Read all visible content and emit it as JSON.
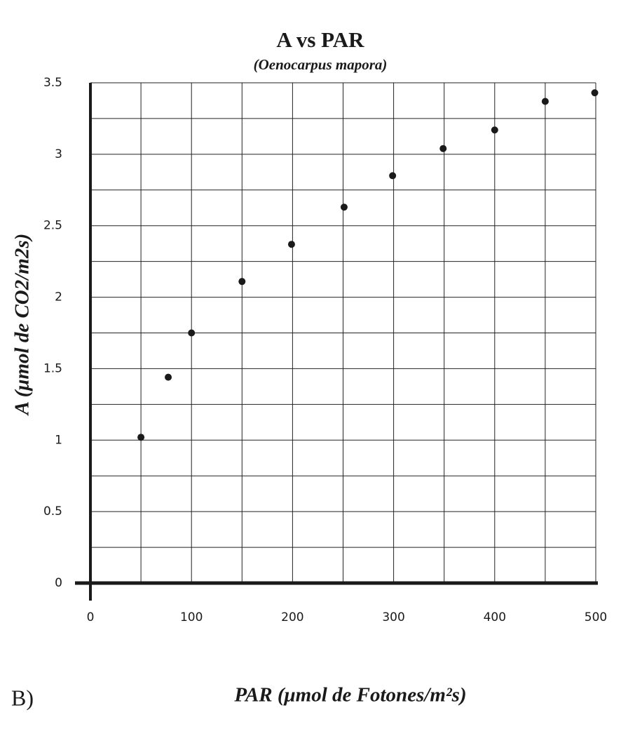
{
  "chart_data": {
    "type": "scatter",
    "title": "A vs PAR",
    "subtitle": "(Oenocarpus mapora)",
    "x_label": "PAR (μmol de Fotones/m²s)",
    "y_label": "A (μmol de CO2/m2s)",
    "panel_label": "B)",
    "x": [
      50,
      77,
      100,
      150,
      199,
      251,
      299,
      349,
      400,
      450,
      499
    ],
    "values": [
      1.02,
      1.44,
      1.75,
      2.11,
      2.37,
      2.63,
      2.85,
      3.04,
      3.17,
      3.37,
      3.43
    ],
    "color": "#1a1a1a",
    "xlim": [
      0,
      500
    ],
    "ylim": [
      0,
      3.5
    ],
    "xticks": [
      0,
      100,
      200,
      300,
      400,
      500
    ],
    "yticks": [
      0,
      0.5,
      1,
      1.5,
      2,
      2.5,
      3,
      3.5
    ],
    "xgrid": [
      50,
      100,
      150,
      200,
      250,
      300,
      350,
      400,
      450,
      500
    ],
    "ygrid": [
      0.25,
      0.5,
      0.75,
      1,
      1.25,
      1.5,
      1.75,
      2,
      2.25,
      2.5,
      2.75,
      3,
      3.25,
      3.5
    ],
    "grid": true
  }
}
